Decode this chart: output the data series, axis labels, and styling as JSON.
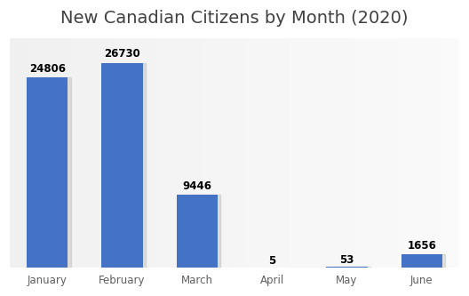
{
  "title": "New Canadian Citizens by Month (2020)",
  "categories": [
    "January",
    "February",
    "March",
    "April",
    "May",
    "June"
  ],
  "values": [
    24806,
    26730,
    9446,
    5,
    53,
    1656
  ],
  "bar_color": "#4472C4",
  "label_fontsize": 8.5,
  "title_fontsize": 14,
  "title_color": "#404040",
  "ylim": [
    0,
    30000
  ],
  "fig_bg_color": "#ffffff",
  "plot_bg_light": "#f5f5f5",
  "plot_bg_dark": "#d8d8d8",
  "bar_width": 0.55,
  "xlabel_fontsize": 8.5,
  "xlabel_color": "#606060"
}
